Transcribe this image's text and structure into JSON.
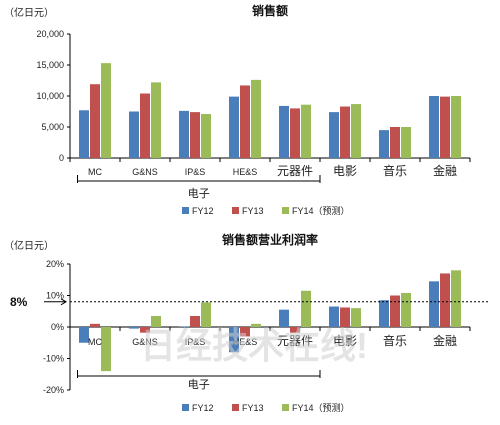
{
  "watermark": "日经技术在线!",
  "colors": {
    "FY12": "#4a7ebb",
    "FY13": "#c0504d",
    "FY14": "#9bbb59"
  },
  "chart_data": [
    {
      "type": "bar",
      "title": "销售额",
      "unit_label": "（亿日元）",
      "categories": [
        "MC",
        "G&NS",
        "IP&S",
        "HE&S",
        "元器件",
        "电影",
        "音乐",
        "金融"
      ],
      "group_label": "电子",
      "group_categories": [
        "MC",
        "G&NS",
        "IP&S",
        "HE&S",
        "元器件"
      ],
      "series": [
        {
          "name": "FY12",
          "values": [
            7700,
            7500,
            7600,
            9900,
            8400,
            7400,
            4500,
            10000
          ]
        },
        {
          "name": "FY13",
          "values": [
            11900,
            10400,
            7400,
            11700,
            8000,
            8300,
            5000,
            9900
          ]
        },
        {
          "name": "FY14（预测）",
          "values": [
            15300,
            12200,
            7100,
            12600,
            8600,
            8700,
            5000,
            10000
          ]
        }
      ],
      "ylim": [
        0,
        20000
      ],
      "yticks": [
        "0",
        "5,000",
        "10,000",
        "15,000",
        "20,000"
      ],
      "legend": [
        "FY12",
        "FY13",
        "FY14（预测）"
      ],
      "legend_position": "bottom",
      "grid": false
    },
    {
      "type": "bar",
      "title": "销售额营业利润率",
      "unit_label": "（亿日元）",
      "categories": [
        "MC",
        "G&NS",
        "IP&S",
        "HE&S",
        "元器件",
        "电影",
        "音乐",
        "金融"
      ],
      "group_label": "电子",
      "group_categories": [
        "MC",
        "G&NS",
        "IP&S",
        "HE&S",
        "元器件"
      ],
      "series": [
        {
          "name": "FY12",
          "values": [
            -5,
            -0.5,
            0.2,
            -8,
            5.5,
            6.5,
            8.5,
            14.5
          ]
        },
        {
          "name": "FY13",
          "values": [
            1,
            -1.8,
            3.5,
            -3,
            -1.8,
            6.2,
            10,
            17
          ]
        },
        {
          "name": "FY14（预测）",
          "values": [
            -14,
            3.5,
            7.8,
            1,
            11.5,
            6,
            10.8,
            18
          ]
        }
      ],
      "ylim": [
        -20,
        20
      ],
      "yticks": [
        "-20%",
        "-10%",
        "0%",
        "10%",
        "20%"
      ],
      "reference_line": {
        "value": 8,
        "label": "8%"
      },
      "legend": [
        "FY12",
        "FY13",
        "FY14（预测）"
      ],
      "legend_position": "bottom",
      "grid": false
    }
  ]
}
